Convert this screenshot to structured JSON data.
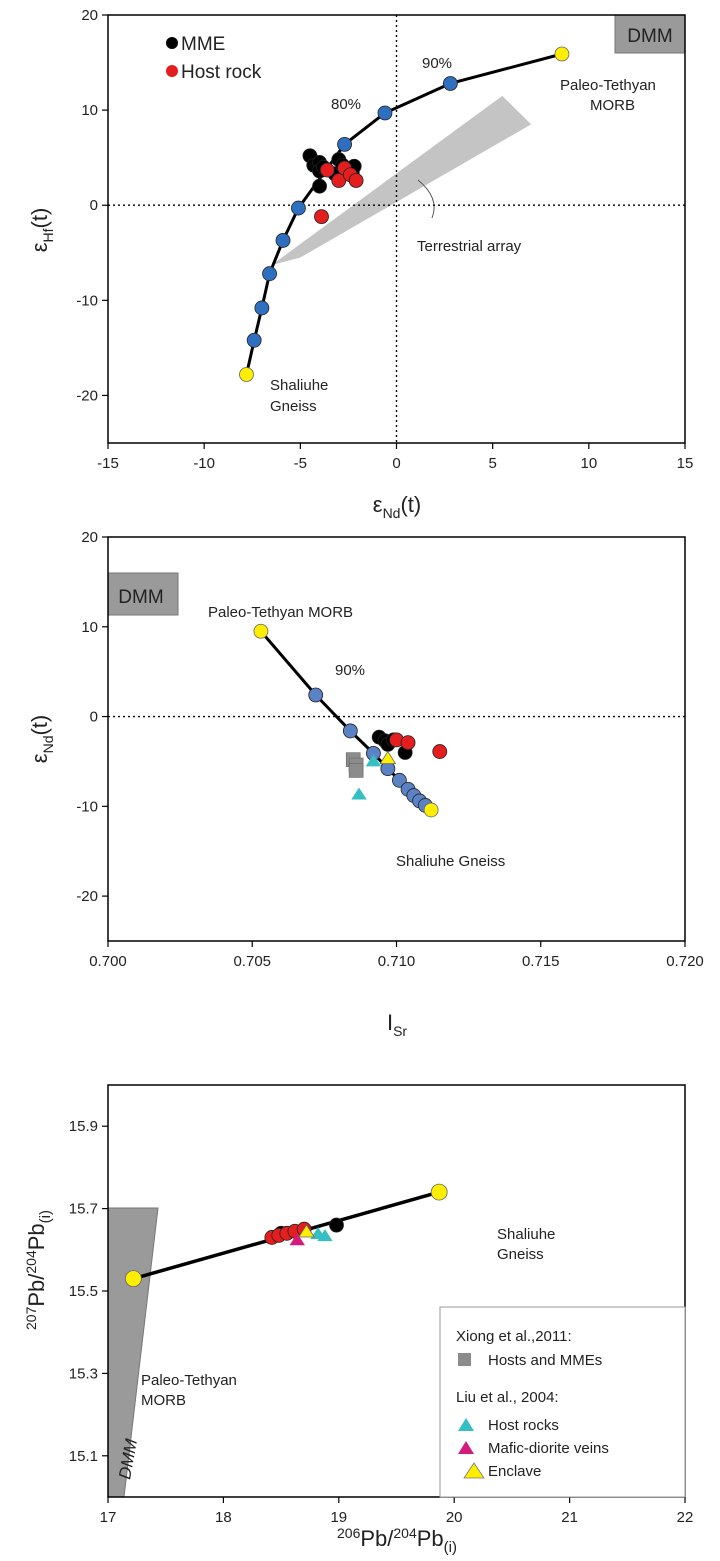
{
  "chart_data": [
    {
      "type": "scatter",
      "panel": "top",
      "xlabel_main": "ε",
      "xlabel_sub": "Nd",
      "xlabel_tail": "(t)",
      "ylabel_main": "ε",
      "ylabel_sub": "Hf",
      "ylabel_tail": "(t)",
      "xlim": [
        -15,
        15
      ],
      "ylim": [
        -25,
        20
      ],
      "xticks": [
        -15,
        -10,
        -5,
        0,
        5,
        10,
        15
      ],
      "yticks": [
        -20,
        -10,
        0,
        10,
        20
      ],
      "reference_lines": {
        "x": 0,
        "y": 0,
        "style": "dotted"
      },
      "grid": false,
      "legend_position": "top-left",
      "series": [
        {
          "name": "MME",
          "color": "#000000",
          "marker": "circle",
          "x": [
            -4.5,
            -4.3,
            -4.0,
            -4.0,
            -3.8,
            -3.2,
            -3.0,
            -2.8,
            -2.3,
            -2.2,
            -4.0
          ],
          "y": [
            5.2,
            4.2,
            4.5,
            3.6,
            4.0,
            3.3,
            4.8,
            4.2,
            3.4,
            4.1,
            2.0
          ]
        },
        {
          "name": "Host rock",
          "color": "#e41e1e",
          "marker": "circle",
          "x": [
            -3.9,
            -3.6,
            -3.0,
            -2.7,
            -2.4,
            -2.1
          ],
          "y": [
            -1.2,
            3.7,
            2.6,
            3.9,
            3.2,
            2.6
          ]
        }
      ],
      "mixing_curve": {
        "x": [
          -7.8,
          -7.4,
          -7.0,
          -6.6,
          -5.9,
          -5.1,
          -2.7,
          -0.6,
          2.8,
          8.6
        ],
        "y": [
          -17.8,
          -14.2,
          -10.8,
          -7.2,
          -3.7,
          -0.3,
          6.4,
          9.7,
          12.8,
          15.9
        ]
      },
      "mixing_points": {
        "color": "#2f6fbf",
        "x": [
          -7.4,
          -7.0,
          -6.6,
          -5.9,
          -5.1,
          -2.7,
          -0.6,
          2.8
        ],
        "y": [
          -14.2,
          -10.8,
          -7.2,
          -3.7,
          -0.3,
          6.4,
          9.7,
          12.8
        ]
      },
      "end_members": {
        "color": "#ffee00",
        "points": [
          {
            "label": "Shaliuhe",
            "label2": "Gneiss",
            "x": -7.8,
            "y": -17.8
          },
          {
            "label": "Paleo-Tethyan",
            "label2": "MORB",
            "x": 8.6,
            "y": 15.9
          }
        ]
      },
      "annotations": {
        "pct80": "80%",
        "pct90": "90%",
        "dmm": "DMM",
        "terrestrial": "Terrestrial array"
      },
      "terrestrial_band": {
        "x": [
          -6.5,
          5.5,
          7.0,
          -5.0
        ],
        "y": [
          -6.3,
          11.5,
          8.5,
          -5.5
        ]
      }
    },
    {
      "type": "scatter",
      "panel": "middle",
      "xlabel_main": "I",
      "xlabel_sub": "Sr",
      "ylabel_main": "ε",
      "ylabel_sub": "Nd",
      "ylabel_tail": "(t)",
      "xlim": [
        0.7,
        0.72
      ],
      "ylim": [
        -25,
        20
      ],
      "xticks": [
        "0.700",
        "0.705",
        "0.710",
        "0.715",
        "0.720"
      ],
      "yticks": [
        -20,
        -10,
        0,
        10,
        20
      ],
      "reference_lines": {
        "y": 0,
        "style": "dotted"
      },
      "grid": false,
      "series": [
        {
          "name": "MME",
          "color": "#000000",
          "marker": "circle",
          "x": [
            0.7094,
            0.7096,
            0.7097,
            0.7099,
            0.7103
          ],
          "y": [
            -2.3,
            -2.7,
            -3.1,
            -2.6,
            -4.0
          ]
        },
        {
          "name": "Host rock",
          "color": "#e41e1e",
          "marker": "circle",
          "x": [
            0.71,
            0.7104,
            0.7115
          ],
          "y": [
            -2.6,
            -2.9,
            -3.9
          ]
        },
        {
          "name": "Hosts and MMEs",
          "color": "#8c8c8c",
          "marker": "square",
          "x": [
            0.7085,
            0.7086,
            0.7086
          ],
          "y": [
            -4.8,
            -5.4,
            -6.0
          ]
        },
        {
          "name": "Host rocks",
          "color": "#35bfc2",
          "marker": "triangle",
          "x": [
            0.7087,
            0.7092
          ],
          "y": [
            -8.6,
            -4.9
          ]
        },
        {
          "name": "Enclave",
          "color": "#ffee00",
          "marker": "triangle",
          "x": [
            0.7097
          ],
          "y": [
            -4.6
          ]
        }
      ],
      "mixing_curve": {
        "x": [
          0.7053,
          0.7072,
          0.7084,
          0.7092,
          0.7097,
          0.7101,
          0.7104,
          0.7106,
          0.7108,
          0.711,
          0.7112
        ],
        "y": [
          9.5,
          2.4,
          -1.6,
          -4.1,
          -5.8,
          -7.1,
          -8.1,
          -8.8,
          -9.4,
          -9.9,
          -10.4
        ]
      },
      "mixing_points": {
        "color": "#5b82c4",
        "x": [
          0.7072,
          0.7084,
          0.7092,
          0.7097,
          0.7101,
          0.7104,
          0.7106,
          0.7108,
          0.711
        ],
        "y": [
          2.4,
          -1.6,
          -4.1,
          -5.8,
          -7.1,
          -8.1,
          -8.8,
          -9.4,
          -9.9
        ]
      },
      "end_members": {
        "color": "#ffee00",
        "points": [
          {
            "label": "Paleo-Tethyan MORB",
            "x": 0.7053,
            "y": 9.5
          },
          {
            "label": "Shaliuhe Gneiss",
            "x": 0.7112,
            "y": -10.4
          }
        ]
      },
      "annotations": {
        "pct90": "90%",
        "dmm": "DMM"
      }
    },
    {
      "type": "scatter",
      "panel": "bottom",
      "xlabel_pre": "206",
      "xlabel_a": "Pb/",
      "xlabel_pre2": "204",
      "xlabel_b": "Pb",
      "xlabel_sub": "(i)",
      "ylabel_pre": "207",
      "ylabel_a": "Pb/",
      "ylabel_pre2": "204",
      "ylabel_b": "Pb",
      "ylabel_sub": "(i)",
      "xlim": [
        17,
        22
      ],
      "ylim": [
        15.0,
        16.0
      ],
      "xticks": [
        17,
        18,
        19,
        20,
        21,
        22
      ],
      "yticks": [
        "15.1",
        "15.3",
        "15.5",
        "15.7",
        "15.9"
      ],
      "grid": false,
      "legend_position": "bottom-right",
      "series": [
        {
          "name": "MME",
          "color": "#000000",
          "marker": "circle",
          "x": [
            18.5,
            18.98
          ],
          "y": [
            15.64,
            15.66
          ]
        },
        {
          "name": "Host rock",
          "color": "#e41e1e",
          "marker": "circle",
          "x": [
            18.42,
            18.48,
            18.55,
            18.62,
            18.7
          ],
          "y": [
            15.63,
            15.635,
            15.64,
            15.645,
            15.65
          ]
        },
        {
          "name": "Host rocks",
          "color": "#35bfc2",
          "marker": "triangle",
          "x": [
            18.82,
            18.88
          ],
          "y": [
            15.64,
            15.635
          ]
        },
        {
          "name": "Mafic-diorite veins",
          "color": "#d41a7a",
          "marker": "triangle",
          "x": [
            18.64
          ],
          "y": [
            15.625
          ]
        },
        {
          "name": "Enclave",
          "color": "#ffee00",
          "marker": "triangle",
          "x": [
            18.72
          ],
          "y": [
            15.645
          ]
        }
      ],
      "mixing_line": {
        "x": [
          17.22,
          19.87
        ],
        "y": [
          15.53,
          15.74
        ]
      },
      "end_members": {
        "color": "#ffee00",
        "points": [
          {
            "label": "Paleo-Tethyan",
            "label2": "MORB",
            "x": 17.22,
            "y": 15.53
          },
          {
            "label": "Shaliuhe",
            "label2": "Gneiss",
            "x": 19.87,
            "y": 15.74
          }
        ]
      },
      "annotations": {
        "dmm": "DMM"
      },
      "legend": {
        "heading1": "Xiong et al.,2011:",
        "item1": "Hosts and MMEs",
        "heading2": "Liu  et al., 2004:",
        "item2": "Host rocks",
        "item3": "Mafic-diorite veins",
        "item4": "Enclave"
      },
      "legend_colors": {
        "square": "#8c8c8c",
        "cyan": "#35bfc2",
        "magenta": "#d41a7a",
        "yellow": "#ffee00"
      }
    }
  ]
}
